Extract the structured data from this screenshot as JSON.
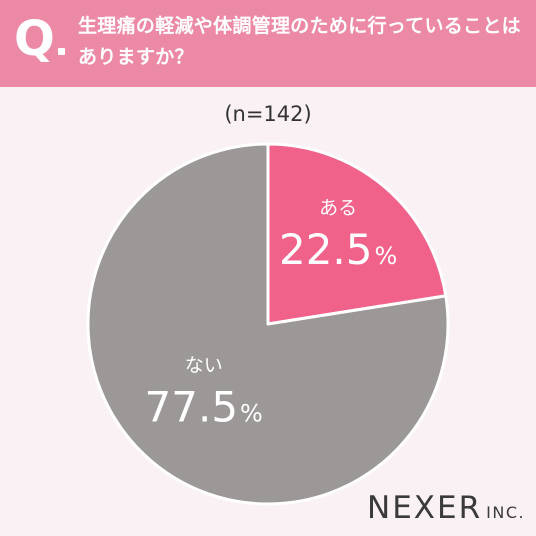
{
  "header": {
    "q_mark": "Q",
    "question": "生理痛の軽減や体調管理のために行っていることはありますか？"
  },
  "sample_size": "(n=142)",
  "chart_data": {
    "type": "pie",
    "categories": [
      "ある",
      "ない"
    ],
    "values": [
      22.5,
      77.5
    ],
    "value_labels": [
      "22.5",
      "77.5"
    ],
    "unit": "%",
    "colors": [
      "#f0628a",
      "#9c9897"
    ]
  },
  "logo": {
    "main": "NEXER",
    "sub": "INC."
  }
}
